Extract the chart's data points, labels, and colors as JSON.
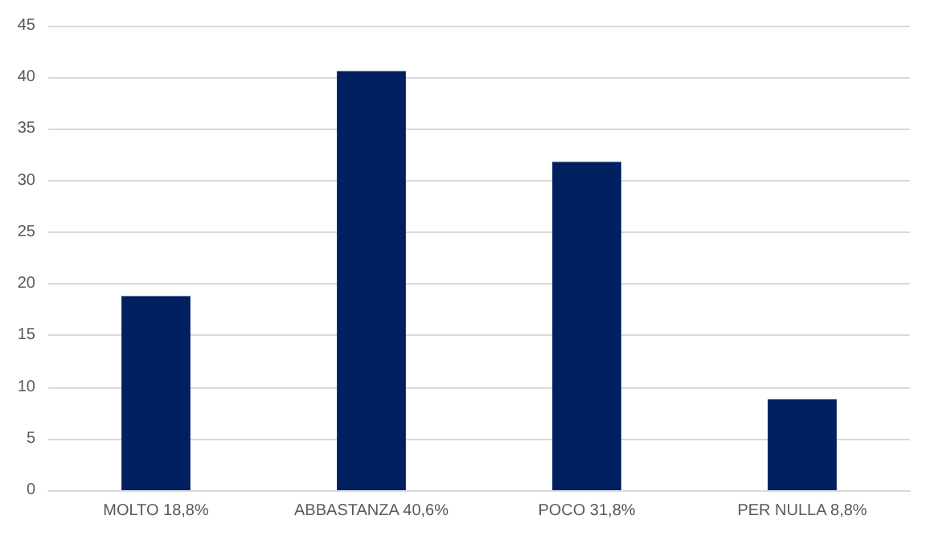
{
  "chart_data": {
    "type": "bar",
    "categories": [
      "MOLTO 18,8%",
      "ABBASTANZA 40,6%",
      "POCO 31,8%",
      "PER NULLA 8,8%"
    ],
    "values": [
      18.8,
      40.6,
      31.8,
      8.8
    ],
    "color": "#002060",
    "ylim": [
      0,
      45
    ],
    "yticks": [
      0,
      5,
      10,
      15,
      20,
      25,
      30,
      35,
      40,
      45
    ],
    "grid": "y"
  }
}
